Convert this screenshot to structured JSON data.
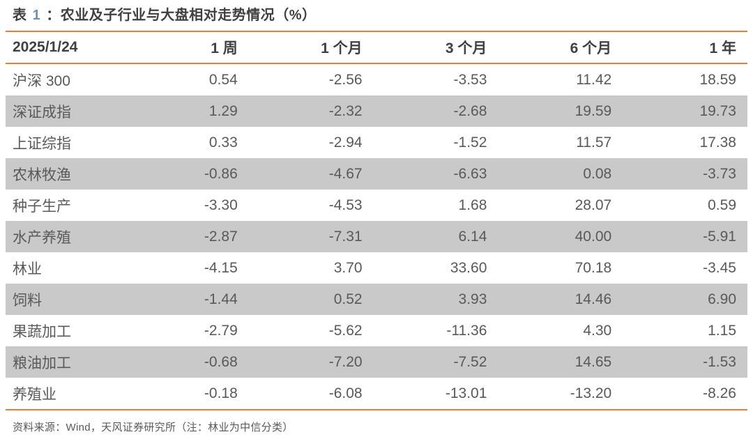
{
  "title": {
    "prefix": "表",
    "number": "1",
    "rest": "：农业及子行业与大盘相对走势情况（%）"
  },
  "table": {
    "header": [
      "2025/1/24",
      "1 周",
      "1 个月",
      "3 个月",
      "6 个月",
      "1 年"
    ],
    "rows": [
      {
        "label": "沪深 300",
        "values": [
          "0.54",
          "-2.56",
          "-3.53",
          "11.42",
          "18.59"
        ]
      },
      {
        "label": "深证成指",
        "values": [
          "1.29",
          "-2.32",
          "-2.68",
          "19.59",
          "19.73"
        ]
      },
      {
        "label": "上证综指",
        "values": [
          "0.33",
          "-2.94",
          "-1.52",
          "11.57",
          "17.38"
        ]
      },
      {
        "label": "农林牧渔",
        "values": [
          "-0.86",
          "-4.67",
          "-6.63",
          "0.08",
          "-3.73"
        ]
      },
      {
        "label": "种子生产",
        "values": [
          "-3.30",
          "-4.53",
          "1.68",
          "28.07",
          "0.59"
        ]
      },
      {
        "label": "水产养殖",
        "values": [
          "-2.87",
          "-7.31",
          "6.14",
          "40.00",
          "-5.91"
        ]
      },
      {
        "label": "林业",
        "values": [
          "-4.15",
          "3.70",
          "33.60",
          "70.18",
          "-3.45"
        ]
      },
      {
        "label": "饲料",
        "values": [
          "-1.44",
          "0.52",
          "3.93",
          "14.46",
          "6.90"
        ]
      },
      {
        "label": "果蔬加工",
        "values": [
          "-2.79",
          "-5.62",
          "-11.36",
          "4.30",
          "1.15"
        ]
      },
      {
        "label": "粮油加工",
        "values": [
          "-0.68",
          "-7.20",
          "-7.52",
          "14.65",
          "-1.53"
        ]
      },
      {
        "label": "养殖业",
        "values": [
          "-0.18",
          "-6.08",
          "-13.01",
          "-13.20",
          "-8.26"
        ]
      }
    ]
  },
  "footer": "资料来源：Wind，天风证券研究所（注：林业为中信分类）",
  "colors": {
    "accent_orange": "#ED7D31",
    "stripe_gray": "#C9C9C9",
    "title_text": "#3F3F3F",
    "title_number_blue": "#6D8FBF",
    "header_text": "#404040",
    "body_text": "#595959"
  }
}
